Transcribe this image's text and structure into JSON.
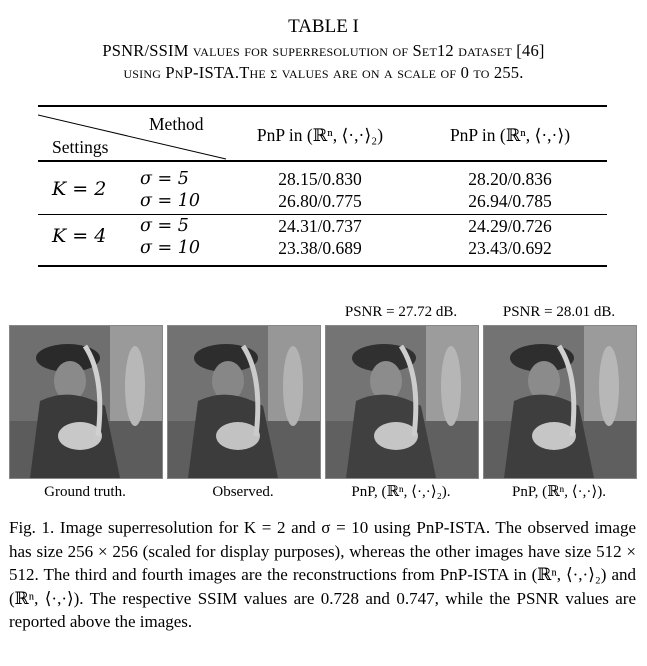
{
  "table": {
    "label": "TABLE I",
    "caption_line1": "PSNR/SSIM values for superresolution of Set12 dataset [46]",
    "caption_line2": "using PnP-ISTA.The σ values are on a scale of 0 to 255.",
    "header": {
      "method": "Method",
      "settings": "Settings",
      "col1": "PnP in (ℝⁿ, ⟨·,·⟩₂)",
      "col2": "PnP in (ℝⁿ, ⟨·,·⟩)"
    },
    "groups": [
      {
        "setting": "K = 2",
        "rows": [
          {
            "sigma": "σ = 5",
            "col1": "28.15/0.830",
            "col2": "28.20/0.836"
          },
          {
            "sigma": "σ = 10",
            "col1": "26.80/0.775",
            "col2": "26.94/0.785"
          }
        ]
      },
      {
        "setting": "K = 4",
        "rows": [
          {
            "sigma": "σ = 5",
            "col1": "24.31/0.737",
            "col2": "24.29/0.726"
          },
          {
            "sigma": "σ = 10",
            "col1": "23.38/0.689",
            "col2": "23.43/0.692"
          }
        ]
      }
    ]
  },
  "figure": {
    "psnr_labels": [
      "PSNR = 27.72 dB.",
      "PSNR = 28.01 dB."
    ],
    "image_labels": [
      "Ground truth.",
      "Observed.",
      "PnP, (ℝⁿ, ⟨·,·⟩₂).",
      "PnP, (ℝⁿ, ⟨·,·⟩)."
    ],
    "caption": "Fig. 1.  Image superresolution for K = 2 and σ = 10 using PnP-ISTA. The observed image has size 256 × 256 (scaled for display purposes), whereas the other images have size 512 × 512. The third and fourth images are the reconstructions from PnP-ISTA in (ℝⁿ, ⟨·,·⟩₂) and (ℝⁿ, ⟨·,·⟩). The respective SSIM values are 0.728 and 0.747, while the PSNR values are reported above the images."
  }
}
